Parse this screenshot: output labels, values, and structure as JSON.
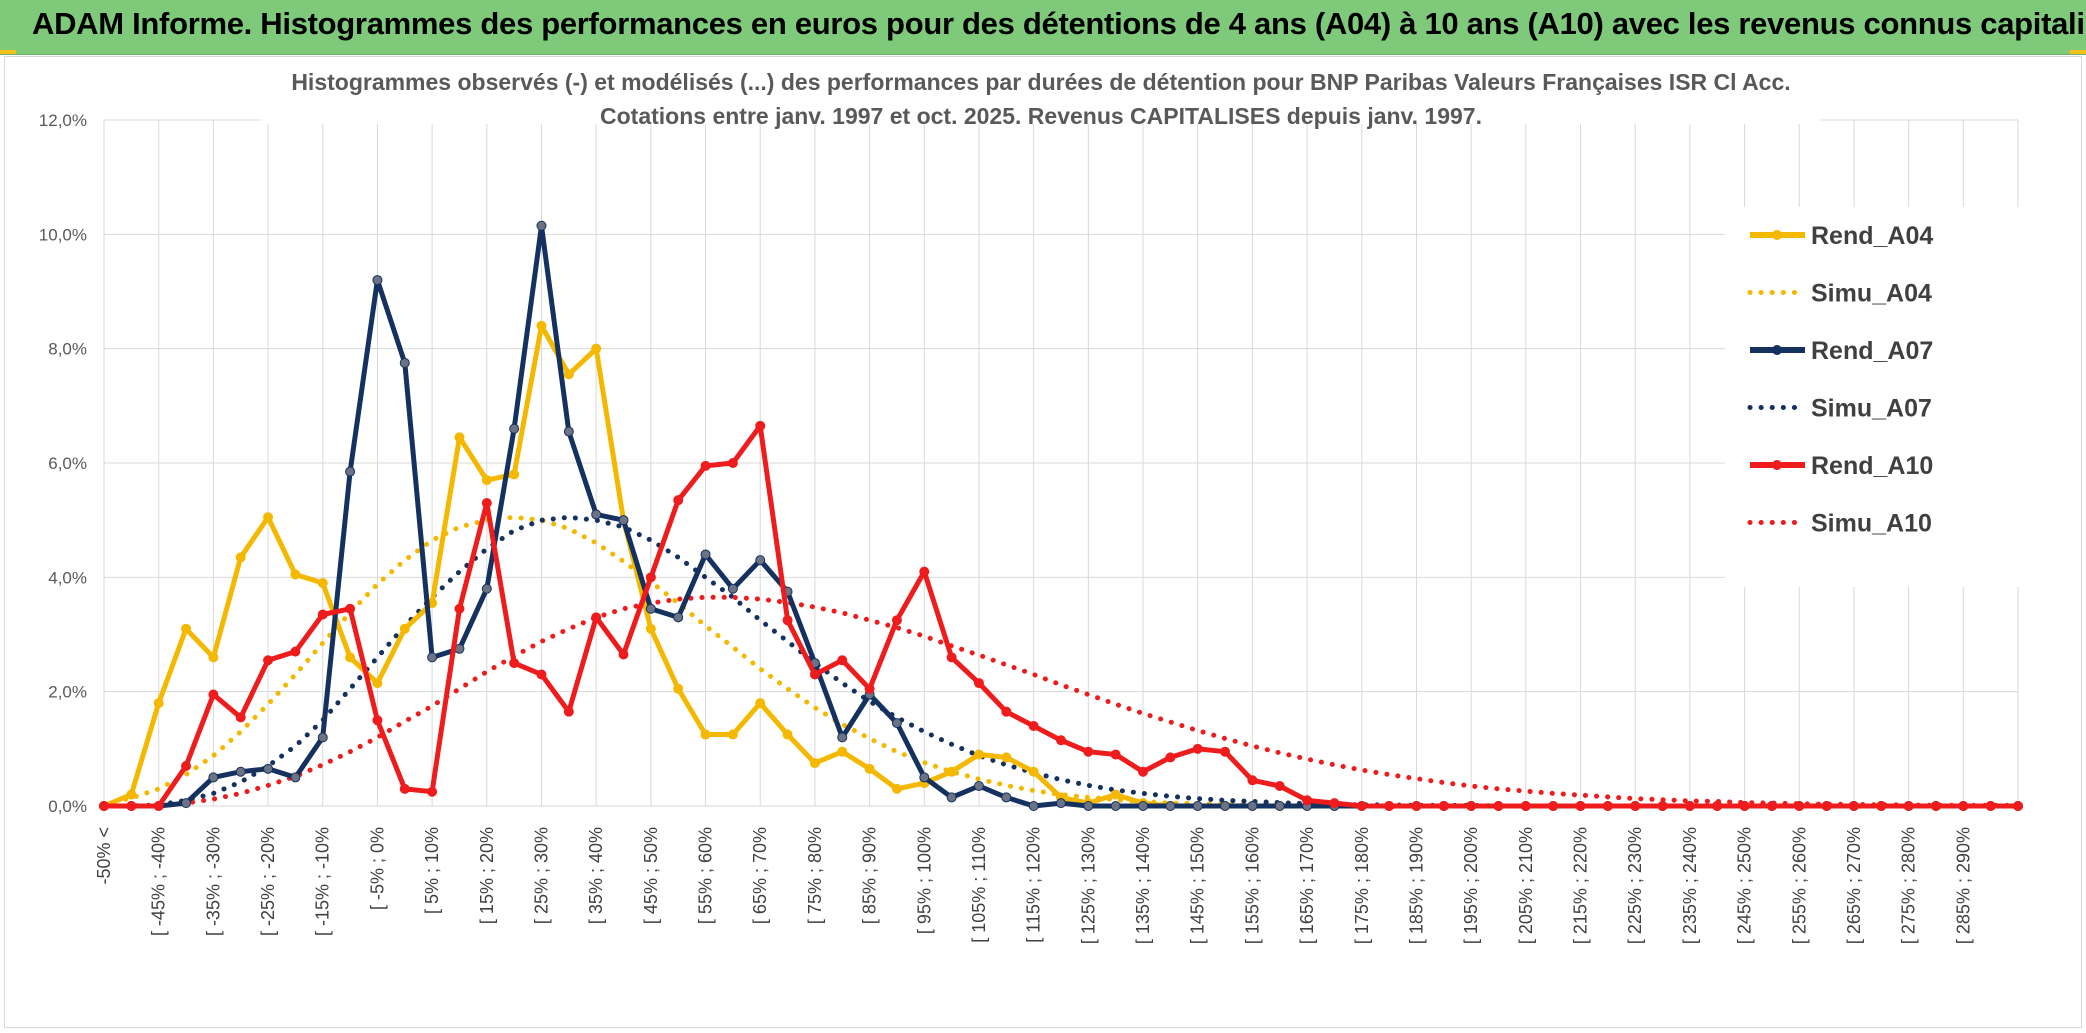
{
  "header": {
    "title": "ADAM Informe. Histogrammes des performances en euros pour des détentions de 4 ans (A04) à 10 ans (A10) avec les revenus connus capitalisés"
  },
  "chart_data": {
    "type": "line",
    "title_line1": "Histogrammes observés (-) et modélisés (...) des performances par durées de détention pour BNP Paribas Valeurs Françaises ISR Cl Acc.",
    "title_line2": "Cotations entre janv. 1997 et oct. 2025. Revenus CAPITALISES depuis janv. 1997.",
    "xlabel": "",
    "ylabel": "",
    "ylim": [
      0,
      12
    ],
    "yticks": [
      "0,0%",
      "2,0%",
      "4,0%",
      "6,0%",
      "8,0%",
      "10,0%",
      "12,0%"
    ],
    "grid": true,
    "legend_position": "right",
    "x_labels": [
      "-50% <",
      "[ -45% ; -40%",
      "[ -35% ; -30%",
      "[ -25% ; -20%",
      "[ -15% ; -10%",
      "[ -5% ; 0%",
      "[ 5% ; 10%",
      "[ 15% ; 20%",
      "[ 25% ; 30%",
      "[ 35% ; 40%",
      "[ 45% ; 50%",
      "[ 55% ; 60%",
      "[ 65% ; 70%",
      "[ 75% ; 80%",
      "[ 85% ; 90%",
      "[ 95% ; 100%",
      "[ 105% ; 110%",
      "[ 115% ; 120%",
      "[ 125% ; 130%",
      "[ 135% ; 140%",
      "[ 145% ; 150%",
      "[ 155% ; 160%",
      "[ 165% ; 170%",
      "[ 175% ; 180%",
      "[ 185% ; 190%",
      "[ 195% ; 200%",
      "[ 205% ; 210%",
      "[ 215% ; 220%",
      "[ 225% ; 230%",
      "[ 235% ; 240%",
      "[ 245% ; 250%",
      "[ 255% ; 260%",
      "[ 265% ; 270%",
      "[ 275% ; 280%",
      "[ 285% ; 290%"
    ],
    "series": [
      {
        "name": "Rend_A04",
        "style": "solid",
        "markers": true,
        "color": "#f5b800",
        "values": [
          0,
          0.2,
          1.8,
          3.1,
          2.6,
          4.35,
          5.05,
          4.05,
          3.9,
          2.6,
          2.15,
          3.1,
          3.55,
          6.45,
          5.7,
          5.8,
          8.4,
          7.55,
          8.0,
          5.0,
          3.1,
          2.05,
          1.25,
          1.25,
          1.8,
          1.25,
          0.75,
          0.95,
          0.65,
          0.3,
          0.4,
          0.6,
          0.9,
          0.85,
          0.6,
          0.15,
          0.05,
          0.2,
          0.05,
          0.0,
          0.0,
          0.0,
          0.0,
          0.0,
          0.0,
          0.0,
          0.0,
          0.0,
          0.0,
          0.0,
          0.0,
          0.0,
          0.0,
          0.0,
          0.0,
          0.0,
          0.0,
          0.0,
          0.0,
          0.0,
          0.0,
          0.0,
          0.0,
          0.0,
          0.0,
          0.0,
          0.0,
          0.0,
          0.0,
          0.0,
          0.0
        ]
      },
      {
        "name": "Simu_A04",
        "style": "dotted",
        "markers": false,
        "color": "#f5b800",
        "values": [
          0.03,
          0.14,
          0.3,
          0.55,
          0.88,
          1.3,
          1.78,
          2.3,
          2.85,
          3.38,
          3.88,
          4.3,
          4.65,
          4.88,
          5.0,
          5.05,
          5.0,
          4.85,
          4.6,
          4.28,
          3.92,
          3.55,
          3.15,
          2.78,
          2.4,
          2.05,
          1.72,
          1.43,
          1.18,
          0.95,
          0.76,
          0.6,
          0.47,
          0.36,
          0.27,
          0.2,
          0.15,
          0.11,
          0.08,
          0.05,
          0.04,
          0.03,
          0.02,
          0.01,
          0.01,
          0.0,
          0.0,
          0.0,
          0.0,
          0.0,
          0.0,
          0.0,
          0.0,
          0.0,
          0.0,
          0.0,
          0.0,
          0.0,
          0.0,
          0.0,
          0.0,
          0.0,
          0.0,
          0.0,
          0.0,
          0.0,
          0.0,
          0.0,
          0.0,
          0.0,
          0.0
        ]
      },
      {
        "name": "Rend_A07",
        "style": "solid",
        "markers": true,
        "color": "#14315f",
        "values": [
          0,
          0,
          0,
          0.05,
          0.5,
          0.6,
          0.65,
          0.5,
          1.2,
          5.85,
          9.2,
          7.75,
          2.6,
          2.75,
          3.8,
          6.6,
          10.15,
          6.55,
          5.1,
          5.0,
          3.45,
          3.3,
          4.4,
          3.8,
          4.3,
          3.75,
          2.5,
          1.2,
          1.95,
          1.45,
          0.5,
          0.15,
          0.35,
          0.15,
          0.0,
          0.05,
          0.0,
          0.0,
          0.0,
          0.0,
          0.0,
          0.0,
          0.0,
          0.0,
          0.0,
          0.0,
          0.0,
          0.0,
          0.0,
          0.0,
          0.0,
          0.0,
          0.0,
          0.0,
          0.0,
          0.0,
          0.0,
          0.0,
          0.0,
          0.0,
          0.0,
          0.0,
          0.0,
          0.0,
          0.0,
          0.0,
          0.0,
          0.0,
          0.0,
          0.0,
          0.0
        ]
      },
      {
        "name": "Simu_A07",
        "style": "dotted",
        "markers": false,
        "color": "#14315f",
        "values": [
          0,
          0,
          0.02,
          0.1,
          0.22,
          0.42,
          0.7,
          1.05,
          1.5,
          2.05,
          2.6,
          3.15,
          3.65,
          4.1,
          4.5,
          4.82,
          5.0,
          5.05,
          5.0,
          4.88,
          4.65,
          4.35,
          4.0,
          3.65,
          3.25,
          2.88,
          2.5,
          2.15,
          1.83,
          1.55,
          1.3,
          1.08,
          0.88,
          0.72,
          0.58,
          0.46,
          0.36,
          0.28,
          0.22,
          0.17,
          0.13,
          0.1,
          0.08,
          0.06,
          0.04,
          0.03,
          0.02,
          0.02,
          0.01,
          0.01,
          0.01,
          0.0,
          0.0,
          0.0,
          0.0,
          0.0,
          0.0,
          0.0,
          0.0,
          0.0,
          0.0,
          0.0,
          0.0,
          0.0,
          0.0,
          0.0,
          0.0,
          0.0,
          0.0,
          0.0,
          0.0
        ]
      },
      {
        "name": "Rend_A10",
        "style": "solid",
        "markers": true,
        "color": "#ee1c1c",
        "values": [
          0,
          0,
          0,
          0.7,
          1.95,
          1.55,
          2.55,
          2.7,
          3.35,
          3.45,
          1.5,
          0.3,
          0.25,
          3.45,
          5.3,
          2.5,
          2.3,
          1.65,
          3.3,
          2.65,
          4.0,
          5.35,
          5.95,
          6.0,
          6.65,
          3.25,
          2.3,
          2.55,
          2.05,
          3.25,
          4.1,
          2.6,
          2.15,
          1.65,
          1.4,
          1.15,
          0.95,
          0.9,
          0.6,
          0.85,
          1.0,
          0.95,
          0.45,
          0.35,
          0.1,
          0.05,
          0.0,
          0.0,
          0.0,
          0.0,
          0.0,
          0.0,
          0.0,
          0.0,
          0.0,
          0.0,
          0.0,
          0.0,
          0.0,
          0.0,
          0.0,
          0.0,
          0.0,
          0.0,
          0.0,
          0.0,
          0.0,
          0.0,
          0.0,
          0.0,
          0.0
        ]
      },
      {
        "name": "Simu_A10",
        "style": "dotted",
        "markers": false,
        "color": "#ee1c1c",
        "values": [
          0,
          0,
          0,
          0.05,
          0.12,
          0.22,
          0.36,
          0.52,
          0.72,
          0.95,
          1.2,
          1.48,
          1.75,
          2.05,
          2.35,
          2.62,
          2.88,
          3.1,
          3.3,
          3.45,
          3.55,
          3.62,
          3.65,
          3.65,
          3.62,
          3.56,
          3.48,
          3.38,
          3.25,
          3.12,
          2.97,
          2.8,
          2.64,
          2.47,
          2.3,
          2.12,
          1.95,
          1.78,
          1.62,
          1.47,
          1.32,
          1.18,
          1.05,
          0.93,
          0.82,
          0.72,
          0.63,
          0.55,
          0.48,
          0.41,
          0.35,
          0.3,
          0.26,
          0.22,
          0.19,
          0.16,
          0.13,
          0.11,
          0.09,
          0.08,
          0.06,
          0.05,
          0.04,
          0.03,
          0.03,
          0.02,
          0.02,
          0.01,
          0.01,
          0.01,
          0.01
        ]
      }
    ]
  }
}
